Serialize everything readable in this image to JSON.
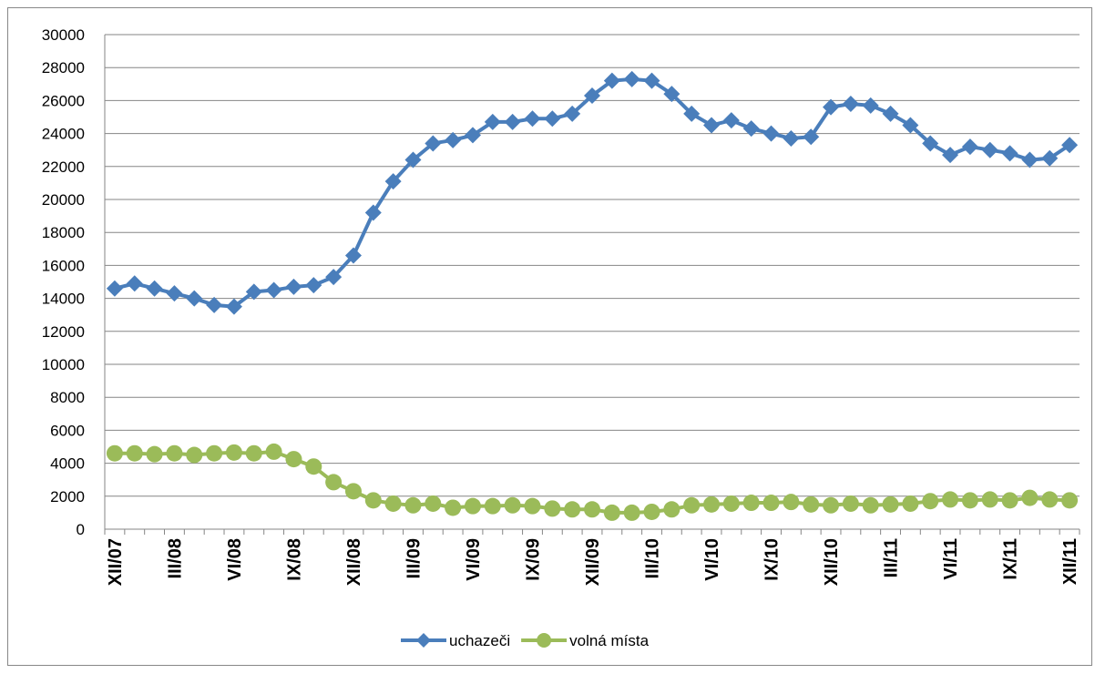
{
  "chart_data": {
    "type": "line",
    "categories": [
      "XII/07",
      null,
      null,
      "III/08",
      null,
      null,
      "VI/08",
      null,
      null,
      "IX/08",
      null,
      null,
      "XII/08",
      null,
      null,
      "III/09",
      null,
      null,
      "VI/09",
      null,
      null,
      "IX/09",
      null,
      null,
      "XII/09",
      null,
      null,
      "III/10",
      null,
      null,
      "VI/10",
      null,
      null,
      "IX/10",
      null,
      null,
      "XII/10",
      null,
      null,
      "III/11",
      null,
      null,
      "VI/11",
      null,
      null,
      "IX/11",
      null,
      null,
      "XII/11"
    ],
    "series": [
      {
        "name": "uchazeči",
        "color": "#4a7ebb",
        "marker": "diamond",
        "values": [
          14600,
          14900,
          14600,
          14300,
          14000,
          13600,
          13500,
          14400,
          14500,
          14700,
          14800,
          15300,
          16600,
          19200,
          21100,
          22400,
          23400,
          23600,
          23900,
          24700,
          24700,
          24900,
          24900,
          25200,
          26300,
          27200,
          27300,
          27200,
          26400,
          25200,
          24500,
          24800,
          24300,
          24000,
          23700,
          23800,
          25600,
          25800,
          25700,
          25200,
          24500,
          23400,
          22700,
          23200,
          23000,
          22800,
          22400,
          22500,
          23300
        ]
      },
      {
        "name": "volná místa",
        "color": "#9bbb59",
        "marker": "circle",
        "values": [
          4600,
          4600,
          4550,
          4600,
          4500,
          4600,
          4650,
          4600,
          4700,
          4250,
          3800,
          2850,
          2300,
          1750,
          1550,
          1450,
          1550,
          1300,
          1400,
          1400,
          1450,
          1400,
          1250,
          1200,
          1200,
          1000,
          1000,
          1050,
          1200,
          1450,
          1500,
          1550,
          1600,
          1600,
          1650,
          1500,
          1450,
          1550,
          1450,
          1500,
          1550,
          1700,
          1800,
          1750,
          1800,
          1750,
          1900,
          1800,
          1750
        ]
      }
    ],
    "ylim": [
      0,
      30000
    ],
    "yticks": [
      0,
      2000,
      4000,
      6000,
      8000,
      10000,
      12000,
      14000,
      16000,
      18000,
      20000,
      22000,
      24000,
      26000,
      28000,
      30000
    ],
    "grid": true,
    "legend": "bottom"
  }
}
